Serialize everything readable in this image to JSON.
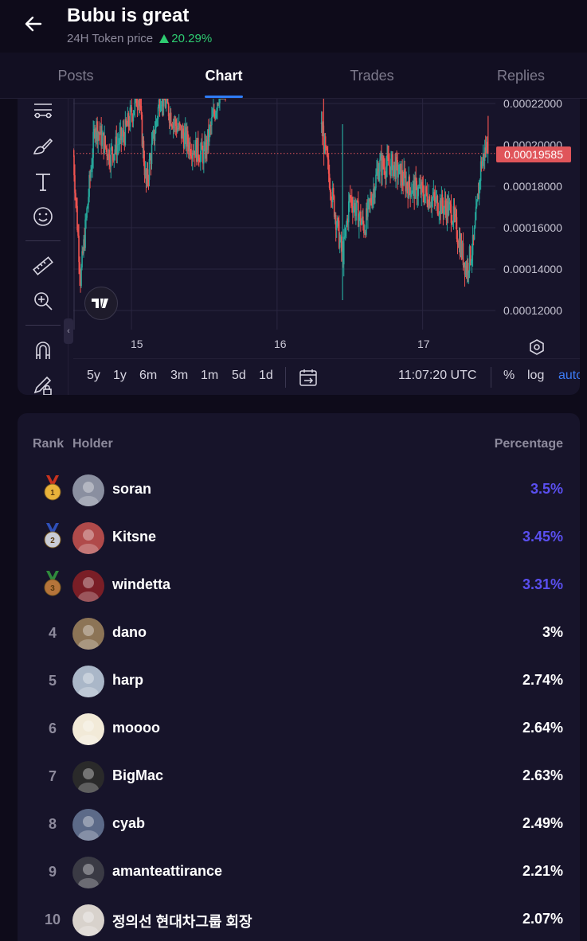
{
  "header": {
    "title": "Bubu is great",
    "subtitle_label": "24H Token price",
    "change": "20.29%"
  },
  "tabs": [
    {
      "label": "Posts",
      "active": false
    },
    {
      "label": "Chart",
      "active": true
    },
    {
      "label": "Trades",
      "active": false
    },
    {
      "label": "Replies",
      "active": false
    }
  ],
  "chart": {
    "y_ticks": [
      "0.00022000",
      "0.00020000",
      "0.00018000",
      "0.00016000",
      "0.00014000",
      "0.00012000"
    ],
    "current_price": "0.00019585",
    "x_ticks": [
      "15",
      "16",
      "17"
    ],
    "ranges": [
      "5y",
      "1y",
      "6m",
      "3m",
      "1m",
      "5d",
      "1d"
    ],
    "time": "11:07:20 UTC",
    "percent_label": "%",
    "log_label": "log",
    "auto_label": "auto",
    "colors": {
      "up": "#26a69a",
      "down": "#ef5350",
      "price_tag": "#e0555a",
      "accent": "#2f7cf6"
    }
  },
  "chart_data": {
    "type": "line",
    "x": [
      14.6,
      14.65,
      14.75,
      14.85,
      14.95,
      15.05,
      15.1,
      15.2,
      15.3,
      15.4,
      15.5,
      15.6,
      15.8,
      16.0,
      16.2,
      16.3,
      16.45,
      16.5,
      16.6,
      16.7,
      16.8,
      16.9,
      17.0,
      17.1,
      17.2,
      17.3,
      17.35,
      17.4,
      17.45
    ],
    "y": [
      0.000195,
      0.000135,
      0.00021,
      0.000195,
      0.000205,
      0.000225,
      0.00018,
      0.000225,
      0.00021,
      0.0002,
      0.000195,
      0.000225,
      0.00023,
      0.00023,
      0.00023,
      0.00021,
      0.000145,
      0.000175,
      0.00016,
      0.00019,
      0.00019,
      0.00018,
      0.000177,
      0.000172,
      0.000168,
      0.00014,
      0.000152,
      0.00019,
      0.000202
    ],
    "xlabel": "",
    "ylabel": "",
    "ylim": [
      0.00011,
      0.000225
    ],
    "current_price": 0.00019585
  },
  "holders": {
    "columns": {
      "rank": "Rank",
      "holder": "Holder",
      "percentage": "Percentage"
    },
    "rows": [
      {
        "rank": "1",
        "name": "soran",
        "pct": "3.5%",
        "medal": "gold",
        "avatar": "#8a8fa0"
      },
      {
        "rank": "2",
        "name": "Kitsne",
        "pct": "3.45%",
        "medal": "silver",
        "avatar": "#b04a4a"
      },
      {
        "rank": "3",
        "name": "windetta",
        "pct": "3.31%",
        "medal": "bronze",
        "avatar": "#7a1e26"
      },
      {
        "rank": "4",
        "name": "dano",
        "pct": "3%",
        "medal": "",
        "avatar": "#8c7456"
      },
      {
        "rank": "5",
        "name": "harp",
        "pct": "2.74%",
        "medal": "",
        "avatar": "#aab7c8"
      },
      {
        "rank": "6",
        "name": "moooo",
        "pct": "2.64%",
        "medal": "",
        "avatar": "#f2ead8"
      },
      {
        "rank": "7",
        "name": "BigMac",
        "pct": "2.63%",
        "medal": "",
        "avatar": "#2a2a2a"
      },
      {
        "rank": "8",
        "name": "cyab",
        "pct": "2.49%",
        "medal": "",
        "avatar": "#5c6a88"
      },
      {
        "rank": "9",
        "name": "amanteattirance",
        "pct": "2.21%",
        "medal": "",
        "avatar": "#3a3a44"
      },
      {
        "rank": "10",
        "name": "정의선 현대차그룹 회장",
        "pct": "2.07%",
        "medal": "",
        "avatar": "#d8d2cc"
      }
    ]
  }
}
